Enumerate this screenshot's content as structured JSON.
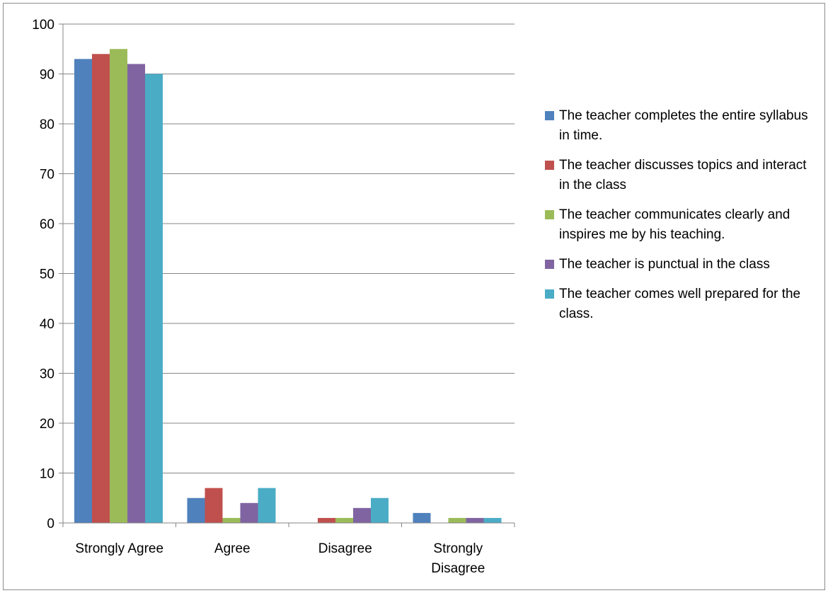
{
  "chart_data": {
    "type": "bar",
    "title": "",
    "xlabel": "",
    "ylabel": "",
    "ylim": [
      0,
      100
    ],
    "yticks": [
      "0",
      "10",
      "20",
      "30",
      "40",
      "50",
      "60",
      "70",
      "80",
      "90",
      "100"
    ],
    "grid": true,
    "legend_position": "right",
    "categories": [
      "Strongly Agree",
      "Agree",
      "Disagree",
      "Strongly Disagree"
    ],
    "series": [
      {
        "name": "The teacher completes the entire syllabus in time.",
        "color": "#4f81bd",
        "values": [
          93,
          5,
          0,
          2
        ]
      },
      {
        "name": "The teacher discusses topics and interact in the class",
        "color": "#c0504d",
        "values": [
          94,
          7,
          1,
          0
        ]
      },
      {
        "name": "The teacher communicates clearly and inspires me by his teaching.",
        "color": "#9bbb59",
        "values": [
          95,
          1,
          1,
          1
        ]
      },
      {
        "name": "The teacher is punctual in the class",
        "color": "#8064a2",
        "values": [
          92,
          4,
          3,
          1
        ]
      },
      {
        "name": "The teacher comes well prepared for the class.",
        "color": "#4bacc6",
        "values": [
          90,
          7,
          5,
          1
        ]
      }
    ]
  }
}
